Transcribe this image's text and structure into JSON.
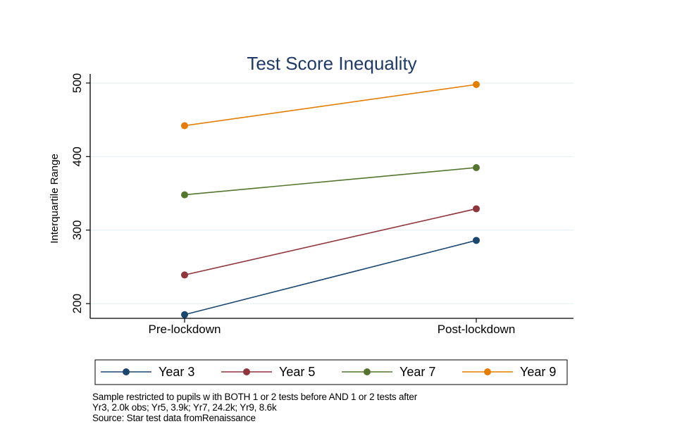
{
  "chart_data": {
    "type": "line",
    "title": "Test Score Inequality",
    "xlabel": "",
    "ylabel": "Interquartile Range",
    "categories": [
      "Pre-lockdown",
      "Post-lockdown"
    ],
    "ylim": [
      180,
      510
    ],
    "yticks": [
      200,
      300,
      400,
      500
    ],
    "grid": true,
    "legend_position": "bottom",
    "series": [
      {
        "name": "Year 3",
        "values": [
          185,
          286
        ],
        "color": "#1a476f"
      },
      {
        "name": "Year 5",
        "values": [
          239,
          329
        ],
        "color": "#90353b"
      },
      {
        "name": "Year 7",
        "values": [
          348,
          385
        ],
        "color": "#55752f"
      },
      {
        "name": "Year 9",
        "values": [
          442,
          498
        ],
        "color": "#e37e00"
      }
    ]
  },
  "notes": [
    "Sample restricted to pupils w ith BOTH 1 or 2 tests before AND 1 or 2 tests after",
    "Yr3, 2.0k obs; Yr5, 3.9k; Yr7, 24.2k; Yr9, 8.6k",
    "Source: Star test data fromRenaissance"
  ]
}
